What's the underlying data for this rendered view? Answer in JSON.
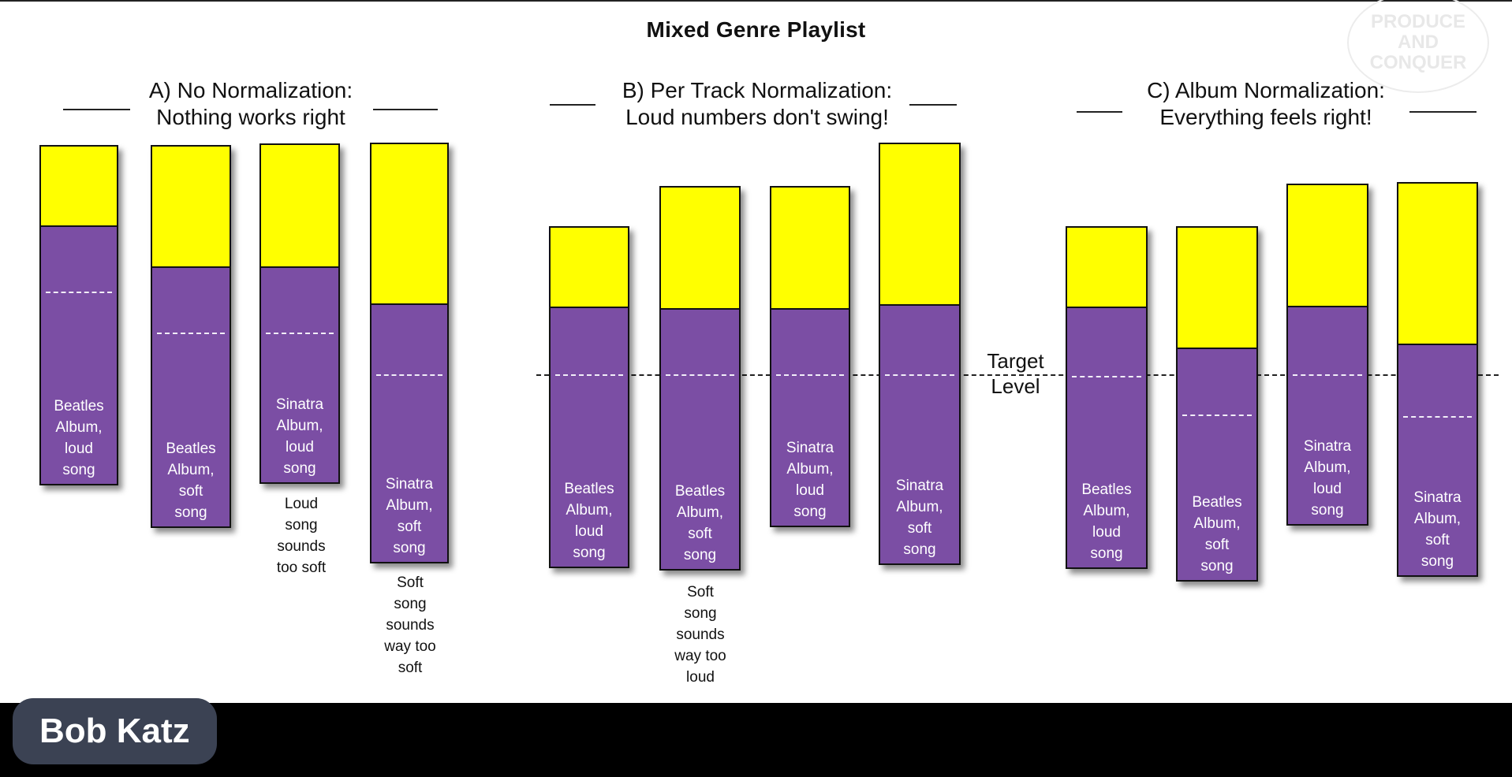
{
  "title": "Mixed Genre Playlist",
  "logo_text": "PRODUCE\nAND CONQUER",
  "speaker": "Bob Katz",
  "target_label": "Target\nLevel",
  "colors": {
    "headroom": "#ffff00",
    "level": "#7b4ea4",
    "slide_bg": "#ffffff",
    "frame_bg": "#000000"
  },
  "sections": [
    {
      "heading": "A) No Normalization:\nNothing works right",
      "bars": [
        {
          "label": "Beatles\nAlbum,\nloud\nsong",
          "note": ""
        },
        {
          "label": "Beatles\nAlbum,\nsoft\nsong",
          "note": ""
        },
        {
          "label": "Sinatra\nAlbum,\nloud\nsong",
          "note": "Loud\nsong\nsounds\ntoo soft"
        },
        {
          "label": "Sinatra\nAlbum,\nsoft\nsong",
          "note": "Soft\nsong\nsounds\nway too\nsoft"
        }
      ]
    },
    {
      "heading": "B) Per Track Normalization:\nLoud numbers don't swing!",
      "bars": [
        {
          "label": "Beatles\nAlbum,\nloud\nsong",
          "note": ""
        },
        {
          "label": "Beatles\nAlbum,\nsoft\nsong",
          "note": "Soft\nsong\nsounds\nway too\nloud"
        },
        {
          "label": "Sinatra\nAlbum,\nloud\nsong",
          "note": ""
        },
        {
          "label": "Sinatra\nAlbum,\nsoft\nsong",
          "note": ""
        }
      ]
    },
    {
      "heading": "C) Album Normalization:\nEverything feels right!",
      "bars": [
        {
          "label": "Beatles\nAlbum,\nloud\nsong",
          "note": ""
        },
        {
          "label": "Beatles\nAlbum,\nsoft\nsong",
          "note": ""
        },
        {
          "label": "Sinatra\nAlbum,\nloud\nsong",
          "note": ""
        },
        {
          "label": "Sinatra\nAlbum,\nsoft\nsong",
          "note": ""
        }
      ]
    }
  ]
}
